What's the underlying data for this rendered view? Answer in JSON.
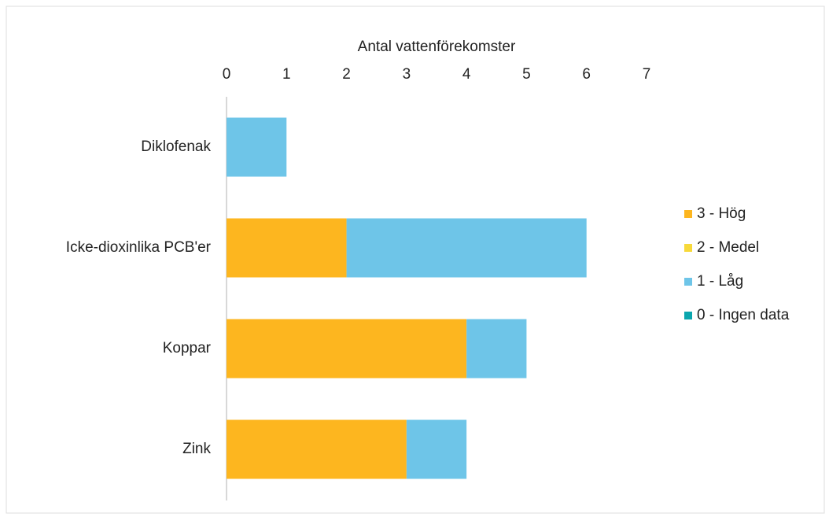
{
  "chart_data": {
    "type": "stacked_barh",
    "xlabel": "Antal vattenförekomster",
    "categories": [
      "Diklofenak",
      "Icke-dioxinlika PCB'er",
      "Koppar",
      "Zink"
    ],
    "series": [
      {
        "name": "3 - Hög",
        "color": "#FDB61F",
        "values": [
          0,
          2,
          4,
          3
        ]
      },
      {
        "name": "2 - Medel",
        "color": "#F7D93A",
        "values": [
          0,
          0,
          0,
          0
        ]
      },
      {
        "name": "1 - Låg",
        "color": "#6EC5E8",
        "values": [
          1,
          4,
          1,
          1
        ]
      },
      {
        "name": "0 - Ingen data",
        "color": "#0AA6AE",
        "values": [
          0,
          0,
          0,
          0
        ]
      }
    ],
    "xlim": [
      0,
      7
    ],
    "xticks": [
      0,
      1,
      2,
      3,
      4,
      5,
      6,
      7
    ],
    "grid": false,
    "legend": "right"
  }
}
